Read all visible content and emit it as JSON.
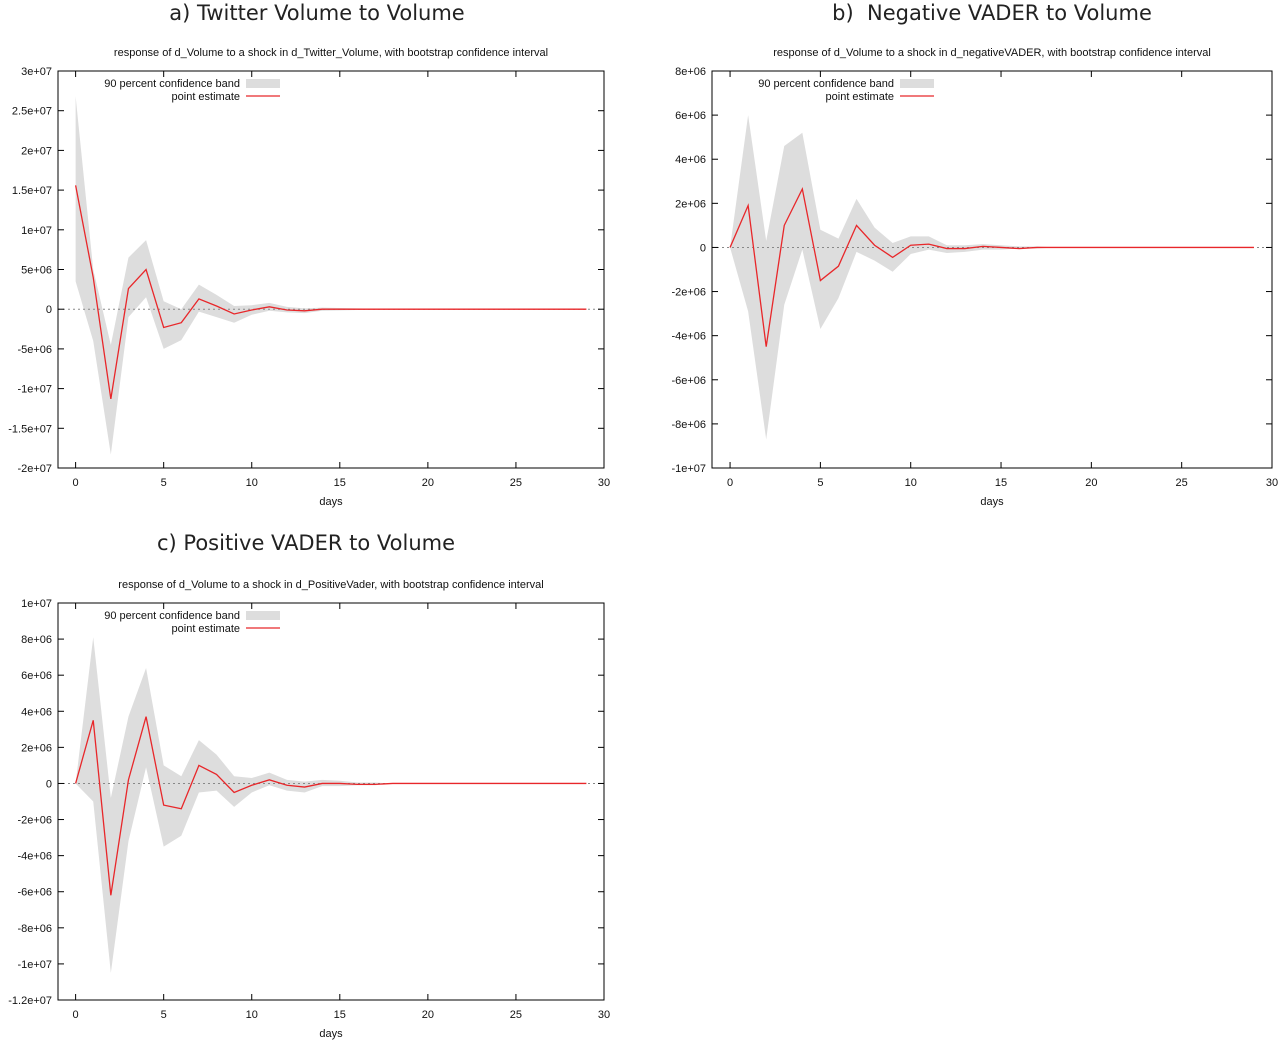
{
  "colors": {
    "band": "#dddddd",
    "line": "#e8272a",
    "axis": "#000000",
    "zero": "#888888"
  },
  "chart_data": [
    {
      "type": "area",
      "panel_title": "a) Twitter Volume to Volume",
      "title": "response of d_Volume to a shock in d_Twitter_Volume, with bootstrap confidence interval",
      "xlabel": "days",
      "xlim": [
        -1,
        30
      ],
      "ylim": [
        -20000000,
        30000000
      ],
      "xticks": [
        0,
        5,
        10,
        15,
        20,
        25,
        30
      ],
      "yticks": [
        -20000000,
        -15000000,
        -10000000,
        -5000000,
        0,
        5000000,
        10000000,
        15000000,
        20000000,
        25000000,
        30000000
      ],
      "ytick_labels": [
        "-2e+07",
        "-1.5e+07",
        "-1e+07",
        "-5e+06",
        "0",
        "5e+06",
        "1e+07",
        "1.5e+07",
        "2e+07",
        "2.5e+07",
        "3e+07"
      ],
      "legend": {
        "position": "top-left",
        "band_label": "90 percent confidence band",
        "point_label": "point estimate"
      },
      "x": [
        0,
        1,
        2,
        3,
        4,
        5,
        6,
        7,
        8,
        9,
        10,
        11,
        12,
        13,
        14,
        15,
        16,
        17,
        18,
        19,
        20,
        21,
        22,
        23,
        24,
        25,
        26,
        27,
        28,
        29
      ],
      "point_estimate": [
        15600000,
        4000000,
        -11300000,
        2600000,
        5000000,
        -2300000,
        -1700000,
        1300000,
        400000,
        -600000,
        -100000,
        300000,
        -100000,
        -200000,
        0,
        0,
        0,
        0,
        0,
        0,
        0,
        0,
        0,
        0,
        0,
        0,
        0,
        0,
        0,
        0
      ],
      "band_upper": [
        26800000,
        5000000,
        -4500000,
        6500000,
        8700000,
        1000000,
        0,
        3100000,
        1800000,
        400000,
        500000,
        800000,
        300000,
        100000,
        200000,
        150000,
        100000,
        50000,
        0,
        0,
        0,
        0,
        0,
        0,
        0,
        0,
        0,
        0,
        0,
        0
      ],
      "band_lower": [
        3500000,
        -4000000,
        -18300000,
        -1000000,
        1500000,
        -5000000,
        -3900000,
        -300000,
        -1000000,
        -1700000,
        -700000,
        -200000,
        -400000,
        -500000,
        -200000,
        -150000,
        -100000,
        -50000,
        0,
        0,
        0,
        0,
        0,
        0,
        0,
        0,
        0,
        0,
        0,
        0
      ]
    },
    {
      "type": "area",
      "panel_title": "b)  Negative VADER to Volume",
      "title": "response of d_Volume to a shock in d_negativeVADER, with bootstrap confidence interval",
      "xlabel": "days",
      "xlim": [
        -1,
        30
      ],
      "ylim": [
        -10000000,
        8000000
      ],
      "xticks": [
        0,
        5,
        10,
        15,
        20,
        25,
        30
      ],
      "yticks": [
        -10000000,
        -8000000,
        -6000000,
        -4000000,
        -2000000,
        0,
        2000000,
        4000000,
        6000000,
        8000000
      ],
      "ytick_labels": [
        "-1e+07",
        "-8e+06",
        "-6e+06",
        "-4e+06",
        "-2e+06",
        "0",
        "2e+06",
        "4e+06",
        "6e+06",
        "8e+06"
      ],
      "legend": {
        "position": "top-left",
        "band_label": "90 percent confidence band",
        "point_label": "point estimate"
      },
      "x": [
        0,
        1,
        2,
        3,
        4,
        5,
        6,
        7,
        8,
        9,
        10,
        11,
        12,
        13,
        14,
        15,
        16,
        17,
        18,
        19,
        20,
        21,
        22,
        23,
        24,
        25,
        26,
        27,
        28,
        29
      ],
      "point_estimate": [
        0,
        1900000,
        -4500000,
        1000000,
        2650000,
        -1500000,
        -850000,
        1000000,
        100000,
        -450000,
        100000,
        150000,
        -50000,
        -50000,
        50000,
        0,
        -50000,
        0,
        0,
        0,
        0,
        0,
        0,
        0,
        0,
        0,
        0,
        0,
        0,
        0
      ],
      "band_upper": [
        0,
        6000000,
        300000,
        4600000,
        5200000,
        800000,
        400000,
        2200000,
        900000,
        200000,
        500000,
        500000,
        100000,
        100000,
        150000,
        100000,
        50000,
        50000,
        0,
        0,
        0,
        0,
        0,
        0,
        0,
        0,
        0,
        0,
        0,
        0
      ],
      "band_lower": [
        0,
        -2900000,
        -8700000,
        -2600000,
        -100000,
        -3700000,
        -2300000,
        -200000,
        -600000,
        -1100000,
        -300000,
        -100000,
        -250000,
        -200000,
        -100000,
        -100000,
        -50000,
        -50000,
        0,
        0,
        0,
        0,
        0,
        0,
        0,
        0,
        0,
        0,
        0,
        0
      ]
    },
    {
      "type": "area",
      "panel_title": "c) Positive VADER to Volume",
      "title": "response of d_Volume to a shock in d_PositiveVader, with bootstrap confidence interval",
      "xlabel": "days",
      "xlim": [
        -1,
        30
      ],
      "ylim": [
        -12000000,
        10000000
      ],
      "xticks": [
        0,
        5,
        10,
        15,
        20,
        25,
        30
      ],
      "yticks": [
        -12000000,
        -10000000,
        -8000000,
        -6000000,
        -4000000,
        -2000000,
        0,
        2000000,
        4000000,
        6000000,
        8000000,
        10000000
      ],
      "ytick_labels": [
        "-1.2e+07",
        "-1e+07",
        "-8e+06",
        "-6e+06",
        "-4e+06",
        "-2e+06",
        "0",
        "2e+06",
        "4e+06",
        "6e+06",
        "8e+06",
        "1e+07"
      ],
      "legend": {
        "position": "top-left",
        "band_label": "90 percent confidence band",
        "point_label": "point estimate"
      },
      "x": [
        0,
        1,
        2,
        3,
        4,
        5,
        6,
        7,
        8,
        9,
        10,
        11,
        12,
        13,
        14,
        15,
        16,
        17,
        18,
        19,
        20,
        21,
        22,
        23,
        24,
        25,
        26,
        27,
        28,
        29
      ],
      "point_estimate": [
        0,
        3500000,
        -6200000,
        200000,
        3700000,
        -1200000,
        -1400000,
        1000000,
        500000,
        -500000,
        -100000,
        200000,
        -100000,
        -200000,
        0,
        0,
        -50000,
        -50000,
        0,
        0,
        0,
        0,
        0,
        0,
        0,
        0,
        0,
        0,
        0,
        0
      ],
      "band_upper": [
        0,
        8100000,
        -800000,
        3700000,
        6400000,
        1000000,
        400000,
        2400000,
        1600000,
        400000,
        300000,
        600000,
        200000,
        100000,
        200000,
        150000,
        50000,
        50000,
        0,
        0,
        0,
        0,
        0,
        0,
        0,
        0,
        0,
        0,
        0,
        0
      ],
      "band_lower": [
        0,
        -1000000,
        -10500000,
        -3200000,
        900000,
        -3500000,
        -2900000,
        -500000,
        -400000,
        -1300000,
        -500000,
        -100000,
        -400000,
        -500000,
        -150000,
        -150000,
        -100000,
        -100000,
        0,
        0,
        0,
        0,
        0,
        0,
        0,
        0,
        0,
        0,
        0,
        0
      ]
    }
  ]
}
